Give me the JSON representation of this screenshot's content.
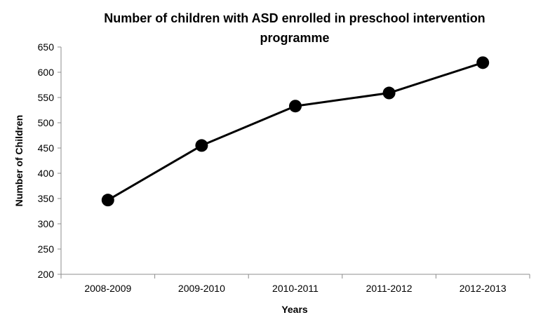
{
  "chart_data": {
    "type": "line",
    "title_line1": "Number of children with ASD enrolled in preschool intervention",
    "title_line2": "programme",
    "xlabel": "Years",
    "ylabel": "Number of Children",
    "categories": [
      "2008-2009",
      "2009-2010",
      "2010-2011",
      "2011-2012",
      "2012-2013"
    ],
    "series": [
      {
        "values": [
          347,
          455,
          533,
          559,
          619
        ]
      }
    ],
    "ylim": [
      200,
      650
    ],
    "yticks": [
      200,
      250,
      300,
      350,
      400,
      450,
      500,
      550,
      600,
      650
    ],
    "grid": false,
    "legend": "none",
    "line_color": "#000000",
    "marker_color": "#000000"
  }
}
